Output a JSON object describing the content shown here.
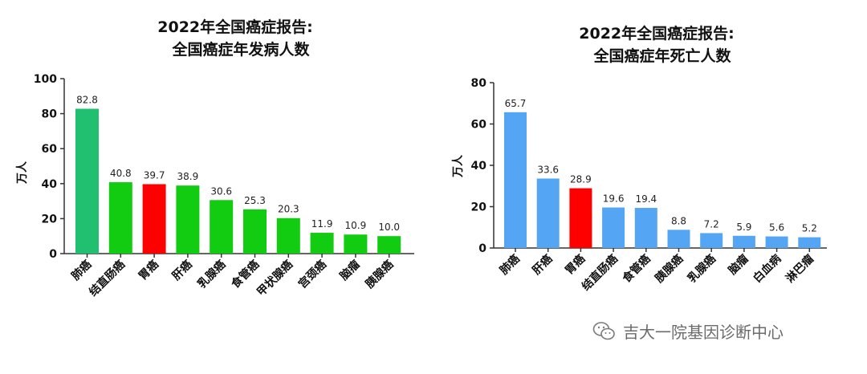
{
  "chart_data": [
    {
      "type": "bar",
      "title": "2022年全国癌症报告:",
      "subtitle": "全国癌症年发病人数",
      "ylabel": "万人",
      "ylim": [
        0,
        100
      ],
      "yticks": [
        0,
        20,
        40,
        60,
        80,
        100
      ],
      "categories": [
        "肺癌",
        "结直肠癌",
        "胃癌",
        "肝癌",
        "乳腺癌",
        "食管癌",
        "甲状腺癌",
        "宫颈癌",
        "脑瘤",
        "胰腺癌"
      ],
      "values": [
        82.8,
        40.8,
        39.7,
        38.9,
        30.6,
        25.3,
        20.3,
        11.9,
        10.9,
        10.0
      ],
      "value_labels": [
        "82.8",
        "40.8",
        "39.7",
        "38.9",
        "30.6",
        "25.3",
        "20.3",
        "11.9",
        "10.9",
        "10.0"
      ],
      "colors": [
        "#20c070",
        "#11cc11",
        "#ff0000",
        "#11cc11",
        "#11cc11",
        "#11cc11",
        "#11cc11",
        "#11cc11",
        "#11cc11",
        "#11cc11"
      ],
      "grid": false
    },
    {
      "type": "bar",
      "title": "2022年全国癌症报告:",
      "subtitle": "全国癌症年死亡人数",
      "ylabel": "万人",
      "ylim": [
        0,
        80
      ],
      "yticks": [
        0,
        20,
        40,
        60,
        80
      ],
      "categories": [
        "肺癌",
        "肝癌",
        "胃癌",
        "结直肠癌",
        "食管癌",
        "胰腺癌",
        "乳腺癌",
        "脑瘤",
        "白血病",
        "淋巴瘤"
      ],
      "values": [
        65.7,
        33.6,
        28.9,
        19.6,
        19.4,
        8.8,
        7.2,
        5.9,
        5.6,
        5.2
      ],
      "value_labels": [
        "65.7",
        "33.6",
        "28.9",
        "19.6",
        "19.4",
        "8.8",
        "7.2",
        "5.9",
        "5.6",
        "5.2"
      ],
      "colors": [
        "#55a5f5",
        "#55a5f5",
        "#ff0000",
        "#55a5f5",
        "#55a5f5",
        "#55a5f5",
        "#55a5f5",
        "#55a5f5",
        "#55a5f5",
        "#55a5f5"
      ],
      "grid": false
    }
  ],
  "watermark": {
    "text": "吉大一院基因诊断中心",
    "icon": "wechat-icon"
  }
}
